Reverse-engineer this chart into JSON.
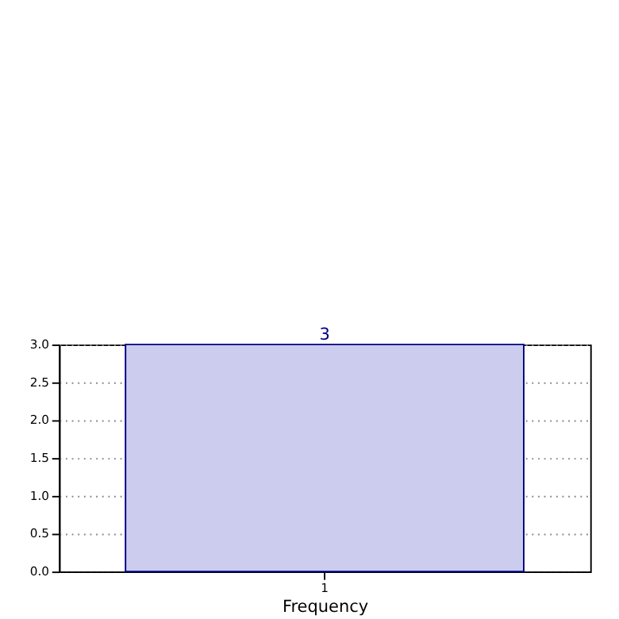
{
  "chart_data": {
    "type": "bar",
    "categories": [
      "1"
    ],
    "values": [
      3
    ],
    "color": "#ccccee",
    "xlabel": "Frequency",
    "ylim": [
      0,
      3
    ],
    "yticks": [
      {
        "value": 0,
        "label": "0.0"
      },
      {
        "value": 0.5,
        "label": "0.5"
      },
      {
        "value": 1,
        "label": "1.0"
      },
      {
        "value": 1.5,
        "label": "1.5"
      },
      {
        "value": 2,
        "label": "2.0"
      },
      {
        "value": 2.5,
        "label": "2.5"
      },
      {
        "value": 3,
        "label": "3.0"
      }
    ],
    "grid": true,
    "data_labels": true
  }
}
